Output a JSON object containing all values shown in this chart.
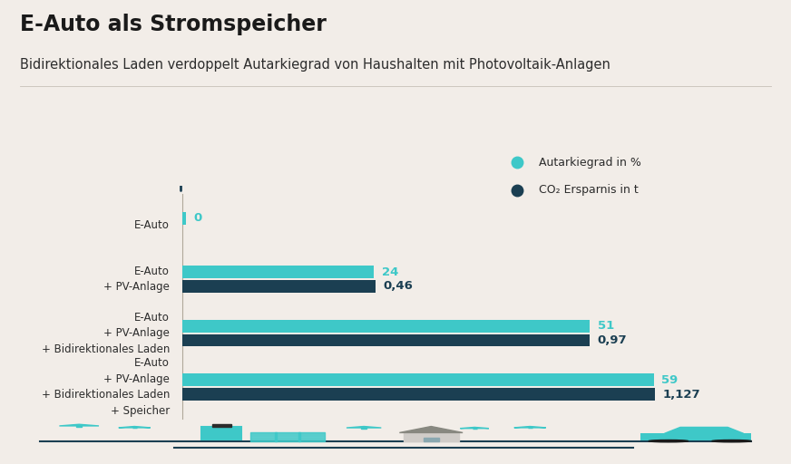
{
  "title": "E-Auto als Stromspeicher",
  "subtitle": "Bidirektionales Laden verdoppelt Autarkiegrad von Haushalten mit Photovoltaik-Anlagen",
  "background_color": "#f2ede8",
  "categories": [
    "E-Auto",
    "E-Auto\n+ PV-Anlage",
    "E-Auto\n+ PV-Anlage\n+ Bidirektionales Laden",
    "E-Auto\n+ PV-Anlage\n+ Bidirektionales Laden\n+ Speicher"
  ],
  "autarkiegrad_values": [
    0,
    24,
    51,
    59
  ],
  "co2_values": [
    0,
    0.46,
    0.97,
    1.127
  ],
  "autarkiegrad_color": "#3ec8c8",
  "co2_color": "#1b3f52",
  "autarkiegrad_label": "Autarkiegrad in %",
  "co2_label": "CO₂ Ersparnis in t",
  "scale_factor": 52.5,
  "title_fontsize": 17,
  "subtitle_fontsize": 10.5,
  "label_fontsize": 8.5,
  "value_fontsize": 9.5
}
